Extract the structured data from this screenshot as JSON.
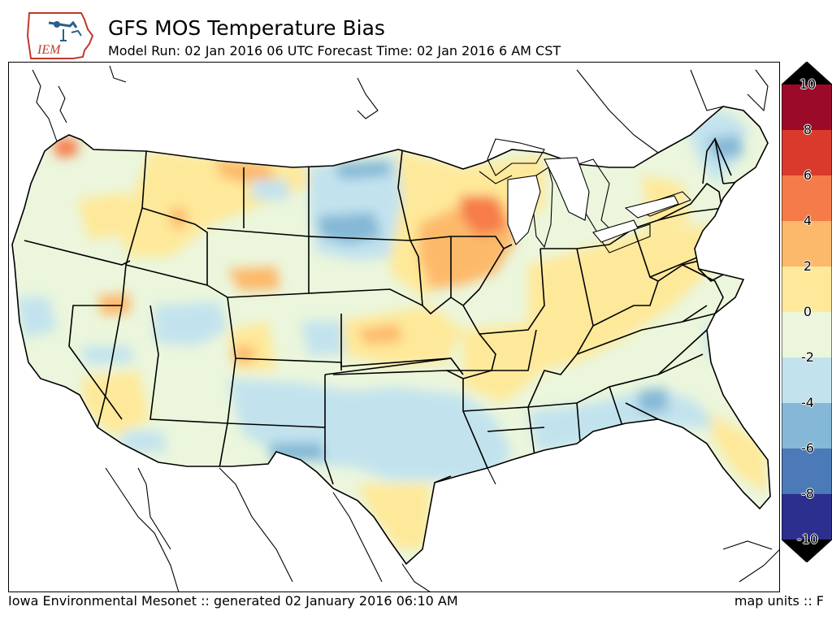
{
  "header": {
    "title": "GFS MOS Temperature Bias",
    "subtitle": "Model Run: 02 Jan 2016 06 UTC Forecast Time: 02 Jan 2016 6 AM CST"
  },
  "logo": {
    "text": "IEM"
  },
  "colorbar": {
    "labels": [
      "10",
      "8",
      "6",
      "4",
      "2",
      "0",
      "-2",
      "-4",
      "-6",
      "-8",
      "-10"
    ],
    "colors": [
      "#9c0a2a",
      "#d93a2c",
      "#f67b4a",
      "#fdb96b",
      "#fee99a",
      "#ebf6dc",
      "#c2e3ee",
      "#84b8d6",
      "#4c7ab8",
      "#2c2f8e"
    ],
    "extend_top_color": "#000000",
    "extend_bottom_color": "#000000"
  },
  "footer": {
    "left": "Iowa Environmental Mesonet :: generated 02 January 2016 06:10 AM",
    "right": "map units :: F"
  }
}
